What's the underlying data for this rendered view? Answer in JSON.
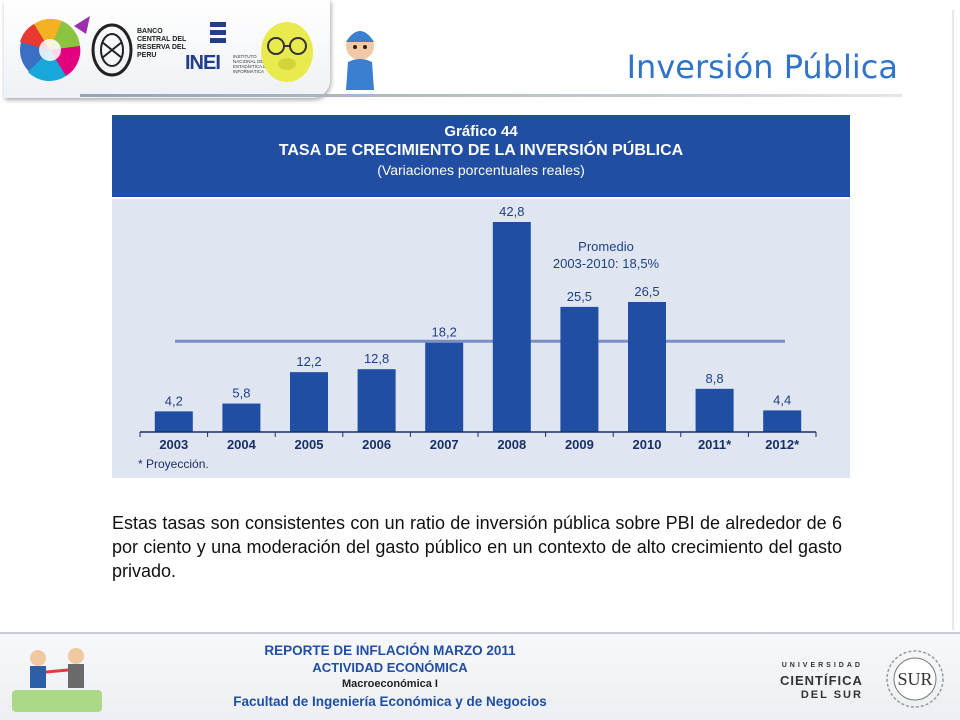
{
  "header": {
    "title": "Inversión Pública",
    "bcr_logo_text": "BANCO CENTRAL DEL RESERVA DEL PERU",
    "inei_logo_text": "INEI",
    "inei_subtext": "INSTITUTO NACIONAL DE ESTADÍSTICA E INFORMÁTICA"
  },
  "chart_data": {
    "type": "bar",
    "title_line1": "Gráfico 44",
    "title": "TASA DE CRECIMIENTO DE LA INVERSIÓN PÚBLICA",
    "subtitle": "(Variaciones porcentuales reales)",
    "categories": [
      "2003",
      "2004",
      "2005",
      "2006",
      "2007",
      "2008",
      "2009",
      "2010",
      "2011*",
      "2012*"
    ],
    "values": [
      4.2,
      5.8,
      12.2,
      12.8,
      18.2,
      42.8,
      25.5,
      26.5,
      8.8,
      4.4
    ],
    "value_labels": [
      "4,2",
      "5,8",
      "12,2",
      "12,8",
      "18,2",
      "42,8",
      "25,5",
      "26,5",
      "8,8",
      "4,4"
    ],
    "reference_line": {
      "value": 18.5,
      "label_line1": "Promedio",
      "label_line2": "2003-2010: 18,5%"
    },
    "footnote": "* Proyección.",
    "ylim": [
      0,
      45
    ],
    "grid": false,
    "bar_color": "#1f4ea3",
    "line_color": "#7c8fc4"
  },
  "body": {
    "paragraph": "Estas tasas son consistentes con un ratio de inversión pública sobre PBI de alrededor de 6 por ciento y una moderación del gasto público en un contexto de alto crecimiento del gasto privado."
  },
  "footer": {
    "line1": "REPORTE DE INFLACIÓN MARZO 2011",
    "line2": "ACTIVIDAD ECONÓMICA",
    "line3": "Macroeconómica I",
    "line4": "Facultad de Ingeniería Económica y de Negocios",
    "university_line1": "UNIVERSIDAD",
    "university_line2": "CIENTÍFICA",
    "university_line3": "DEL SUR",
    "sur_logo_text": "SUR"
  }
}
